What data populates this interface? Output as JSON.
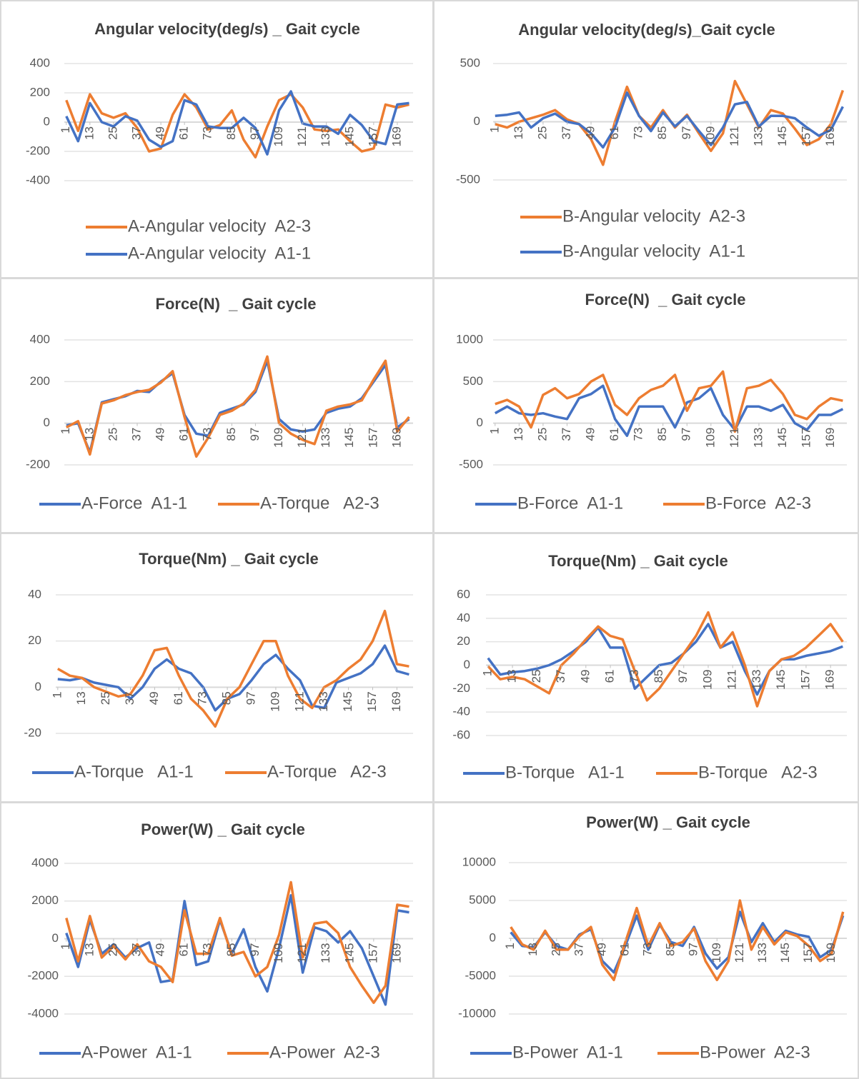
{
  "chart_data": [
    {
      "type": "line",
      "title": "Angular velocity(deg/s) _ Gait cycle",
      "legend": "bottom",
      "grid": true,
      "x": [
        1,
        7,
        13,
        19,
        25,
        31,
        37,
        43,
        49,
        55,
        61,
        67,
        73,
        79,
        85,
        91,
        97,
        103,
        109,
        115,
        121,
        127,
        133,
        139,
        145,
        151,
        157,
        163,
        169,
        175
      ],
      "xlim": [
        0,
        177
      ],
      "xticks": [
        1,
        13,
        25,
        37,
        49,
        61,
        73,
        85,
        97,
        109,
        121,
        133,
        145,
        157,
        169
      ],
      "ylim": [
        -400,
        400
      ],
      "yticks": [
        -400,
        -200,
        0,
        200,
        400
      ],
      "series": [
        {
          "name": "A-Angular velocity  A2-3",
          "color": "#ed7d31",
          "values": [
            150,
            -60,
            190,
            60,
            30,
            60,
            -40,
            -200,
            -180,
            50,
            190,
            100,
            -50,
            -20,
            80,
            -120,
            -240,
            -30,
            150,
            190,
            100,
            -50,
            -60,
            -50,
            -130,
            -200,
            -180,
            120,
            100,
            120
          ]
        },
        {
          "name": "A-Angular velocity  A1-1",
          "color": "#4472c4",
          "values": [
            40,
            -130,
            130,
            0,
            -30,
            40,
            10,
            -120,
            -170,
            -130,
            150,
            120,
            -30,
            -40,
            -40,
            30,
            -40,
            -220,
            80,
            210,
            -10,
            -30,
            -30,
            -80,
            50,
            -20,
            -130,
            -150,
            120,
            130
          ]
        }
      ]
    },
    {
      "type": "line",
      "title": "Angular velocity(deg/s)_Gait cycle",
      "legend": "bottom",
      "grid": true,
      "x": [
        1,
        7,
        13,
        19,
        25,
        31,
        37,
        43,
        49,
        55,
        61,
        67,
        73,
        79,
        85,
        91,
        97,
        103,
        109,
        115,
        121,
        127,
        133,
        139,
        145,
        151,
        157,
        163,
        169,
        175
      ],
      "xlim": [
        0,
        177
      ],
      "xticks": [
        1,
        13,
        25,
        37,
        49,
        61,
        73,
        85,
        97,
        109,
        121,
        133,
        145,
        157,
        169
      ],
      "ylim": [
        -500,
        500
      ],
      "yticks": [
        -500,
        0,
        500
      ],
      "series": [
        {
          "name": "B-Angular velocity  A2-3",
          "color": "#ed7d31",
          "values": [
            -20,
            -50,
            0,
            30,
            60,
            100,
            20,
            -20,
            -150,
            -370,
            0,
            300,
            50,
            -50,
            100,
            -50,
            60,
            -100,
            -250,
            -100,
            350,
            150,
            -50,
            100,
            70,
            -60,
            -200,
            -150,
            -20,
            270
          ]
        },
        {
          "name": "B-Angular velocity  A1-1",
          "color": "#4472c4",
          "values": [
            50,
            60,
            80,
            -50,
            30,
            70,
            0,
            -20,
            -100,
            -220,
            -50,
            250,
            50,
            -80,
            80,
            -40,
            50,
            -80,
            -200,
            -50,
            150,
            170,
            -40,
            50,
            50,
            30,
            -50,
            -120,
            -70,
            130
          ]
        }
      ]
    },
    {
      "type": "line",
      "title": "Force(N)  _ Gait cycle",
      "legend": "bottom",
      "grid": true,
      "x": [
        1,
        7,
        13,
        19,
        25,
        31,
        37,
        43,
        49,
        55,
        61,
        67,
        73,
        79,
        85,
        91,
        97,
        103,
        109,
        115,
        121,
        127,
        133,
        139,
        145,
        151,
        157,
        163,
        169,
        175
      ],
      "xlim": [
        0,
        177
      ],
      "xticks": [
        1,
        13,
        25,
        37,
        49,
        61,
        73,
        85,
        97,
        109,
        121,
        133,
        145,
        157,
        169
      ],
      "ylim": [
        -200,
        400
      ],
      "yticks": [
        -200,
        0,
        200,
        400
      ],
      "series": [
        {
          "name": "A-Force  A1-1",
          "color": "#4472c4",
          "values": [
            -10,
            0,
            -140,
            100,
            115,
            130,
            155,
            150,
            200,
            240,
            40,
            -50,
            -60,
            50,
            70,
            90,
            150,
            300,
            20,
            -30,
            -40,
            -30,
            50,
            70,
            80,
            120,
            200,
            280,
            -20,
            20
          ]
        },
        {
          "name": "A-Torque   A2-3",
          "color": "#ed7d31",
          "values": [
            -20,
            10,
            -150,
            95,
            110,
            135,
            150,
            160,
            195,
            250,
            30,
            -160,
            -70,
            40,
            60,
            95,
            160,
            320,
            0,
            -50,
            -80,
            -100,
            60,
            80,
            90,
            110,
            210,
            300,
            -40,
            30
          ]
        }
      ]
    },
    {
      "type": "line",
      "title": "Force(N)  _ Gait cycle",
      "legend": "bottom",
      "grid": true,
      "x": [
        1,
        7,
        13,
        19,
        25,
        31,
        37,
        43,
        49,
        55,
        61,
        67,
        73,
        79,
        85,
        91,
        97,
        103,
        109,
        115,
        121,
        127,
        133,
        139,
        145,
        151,
        157,
        163,
        169,
        175
      ],
      "xlim": [
        0,
        177
      ],
      "xticks": [
        1,
        13,
        25,
        37,
        49,
        61,
        73,
        85,
        97,
        109,
        121,
        133,
        145,
        157,
        169
      ],
      "ylim": [
        -500,
        1000
      ],
      "yticks": [
        -500,
        0,
        500,
        1000
      ],
      "series": [
        {
          "name": "B-Force  A1-1",
          "color": "#4472c4",
          "values": [
            120,
            200,
            120,
            100,
            120,
            80,
            50,
            300,
            350,
            450,
            50,
            -150,
            200,
            200,
            200,
            -50,
            250,
            300,
            420,
            100,
            -80,
            200,
            200,
            150,
            220,
            0,
            -80,
            100,
            100,
            170
          ]
        },
        {
          "name": "B-Force  A2-3",
          "color": "#ed7d31",
          "values": [
            230,
            280,
            200,
            -50,
            340,
            420,
            300,
            350,
            500,
            580,
            220,
            100,
            300,
            400,
            450,
            580,
            150,
            420,
            450,
            620,
            -100,
            420,
            450,
            520,
            350,
            100,
            50,
            200,
            300,
            270
          ]
        }
      ]
    },
    {
      "type": "line",
      "title": "Torque(Nm) _ Gait cycle",
      "legend": "bottom",
      "grid": true,
      "x": [
        1,
        7,
        13,
        19,
        25,
        31,
        37,
        43,
        49,
        55,
        61,
        67,
        73,
        79,
        85,
        91,
        97,
        103,
        109,
        115,
        121,
        127,
        133,
        139,
        145,
        151,
        157,
        163,
        169,
        175
      ],
      "xlim": [
        0,
        177
      ],
      "xticks": [
        1,
        13,
        25,
        37,
        49,
        61,
        73,
        85,
        97,
        109,
        121,
        133,
        145,
        157,
        169
      ],
      "ylim": [
        -20,
        40
      ],
      "yticks": [
        -20,
        0,
        20,
        40
      ],
      "series": [
        {
          "name": "A-Torque   A1-1",
          "color": "#4472c4",
          "values": [
            3.5,
            3,
            4,
            2,
            1,
            0,
            -5,
            0,
            8,
            12,
            8,
            6,
            0,
            -10,
            -5,
            -3,
            3,
            10,
            14,
            8,
            3,
            -8,
            -9,
            2,
            4,
            6,
            10,
            18,
            7,
            5.5
          ]
        },
        {
          "name": "A-Torque   A2-3",
          "color": "#ed7d31",
          "values": [
            8,
            5,
            4,
            0,
            -2,
            -4,
            -3,
            5,
            16,
            17,
            5,
            -5,
            -10,
            -17,
            -5,
            0,
            10,
            20,
            20,
            5,
            -5,
            -9,
            0,
            3,
            8,
            12,
            20,
            33,
            10,
            9
          ]
        }
      ]
    },
    {
      "type": "line",
      "title": "Torque(Nm) _ Gait cycle",
      "legend": "bottom",
      "grid": true,
      "x": [
        1,
        7,
        13,
        19,
        25,
        31,
        37,
        43,
        49,
        55,
        61,
        67,
        73,
        79,
        85,
        91,
        97,
        103,
        109,
        115,
        121,
        127,
        133,
        139,
        145,
        151,
        157,
        163,
        169,
        175
      ],
      "xlim": [
        0,
        177
      ],
      "xticks": [
        1,
        13,
        25,
        37,
        49,
        61,
        73,
        85,
        97,
        109,
        121,
        133,
        145,
        157,
        169
      ],
      "ylim": [
        -60,
        60
      ],
      "yticks": [
        -60,
        -40,
        -20,
        0,
        20,
        40,
        60
      ],
      "series": [
        {
          "name": "B-Torque   A1-1",
          "color": "#4472c4",
          "values": [
            6,
            -8,
            -6,
            -5,
            -3,
            0,
            5,
            12,
            20,
            32,
            15,
            15,
            -20,
            -10,
            0,
            2,
            10,
            20,
            35,
            15,
            20,
            -5,
            -25,
            -5,
            5,
            5,
            8,
            10,
            12,
            16
          ]
        },
        {
          "name": "B-Torque   A2-3",
          "color": "#ed7d31",
          "values": [
            -1,
            -12,
            -10,
            -12,
            -18,
            -24,
            0,
            10,
            22,
            33,
            25,
            22,
            -5,
            -30,
            -20,
            -5,
            10,
            25,
            45,
            15,
            28,
            0,
            -35,
            -5,
            5,
            8,
            15,
            25,
            35,
            20
          ]
        }
      ]
    },
    {
      "type": "line",
      "title": "Power(W) _ Gait cycle",
      "legend": "bottom",
      "grid": true,
      "x": [
        1,
        7,
        13,
        19,
        25,
        31,
        37,
        43,
        49,
        55,
        61,
        67,
        73,
        79,
        85,
        91,
        97,
        103,
        109,
        115,
        121,
        127,
        133,
        139,
        145,
        151,
        157,
        163,
        169,
        175
      ],
      "xlim": [
        0,
        177
      ],
      "xticks": [
        1,
        13,
        25,
        37,
        49,
        61,
        73,
        85,
        97,
        109,
        121,
        133,
        145,
        157,
        169
      ],
      "ylim": [
        -4000,
        4000
      ],
      "yticks": [
        -4000,
        -2000,
        0,
        2000,
        4000
      ],
      "series": [
        {
          "name": "A-Power  A1-1",
          "color": "#4472c4",
          "values": [
            300,
            -1500,
            1000,
            -800,
            -300,
            -1000,
            -500,
            -200,
            -2300,
            -2200,
            2000,
            -1400,
            -1200,
            1000,
            -800,
            500,
            -1500,
            -2800,
            -500,
            2300,
            -1800,
            600,
            400,
            -200,
            400,
            -500,
            -2000,
            -3500,
            1500,
            1400
          ]
        },
        {
          "name": "A-Power  A2-3",
          "color": "#ed7d31",
          "values": [
            1100,
            -1200,
            1200,
            -1000,
            -400,
            -1100,
            -300,
            -1200,
            -1500,
            -2300,
            1500,
            -800,
            -800,
            1100,
            -900,
            -700,
            -2000,
            -1500,
            200,
            3000,
            -1000,
            800,
            900,
            300,
            -1500,
            -2500,
            -3400,
            -2500,
            1800,
            1700
          ]
        }
      ]
    },
    {
      "type": "line",
      "title": "Power(W) _ Gait cycle",
      "legend": "bottom",
      "grid": true,
      "x": [
        1,
        7,
        13,
        19,
        25,
        31,
        37,
        43,
        49,
        55,
        61,
        67,
        73,
        79,
        85,
        91,
        97,
        103,
        109,
        115,
        121,
        127,
        133,
        139,
        145,
        151,
        157,
        163,
        169,
        175
      ],
      "xlim": [
        0,
        177
      ],
      "xticks": [
        1,
        13,
        25,
        37,
        49,
        61,
        73,
        85,
        97,
        109,
        121,
        133,
        145,
        157,
        169
      ],
      "ylim": [
        -10000,
        10000
      ],
      "yticks": [
        -10000,
        -5000,
        0,
        5000,
        10000
      ],
      "series": [
        {
          "name": "B-Power  A1-1",
          "color": "#4472c4",
          "values": [
            800,
            -1000,
            -1200,
            800,
            -1000,
            -1500,
            500,
            1200,
            -3000,
            -4500,
            -1000,
            3000,
            -1500,
            1800,
            -500,
            -1000,
            1500,
            -2000,
            -4000,
            -2500,
            3500,
            -500,
            2000,
            -500,
            1000,
            500,
            200,
            -2500,
            -1500,
            3000
          ]
        },
        {
          "name": "B-Power  A2-3",
          "color": "#ed7d31",
          "values": [
            1500,
            -800,
            -1500,
            1000,
            -1500,
            -1500,
            300,
            1500,
            -3500,
            -5500,
            -500,
            4000,
            -1000,
            2000,
            -1000,
            -500,
            1300,
            -3000,
            -5500,
            -3000,
            5000,
            -1500,
            1500,
            -800,
            800,
            300,
            -1000,
            -3000,
            -2000,
            3500
          ]
        }
      ]
    }
  ]
}
